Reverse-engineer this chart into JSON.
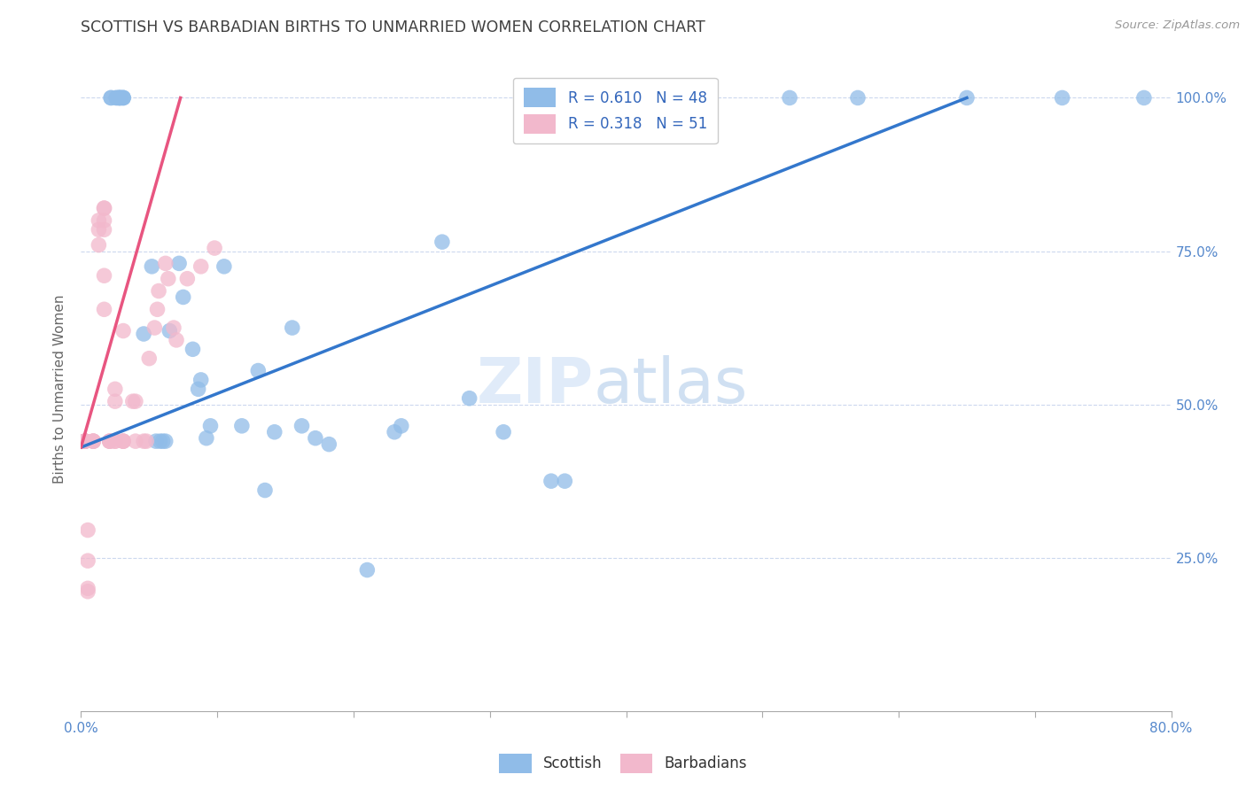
{
  "title": "SCOTTISH VS BARBADIAN BIRTHS TO UNMARRIED WOMEN CORRELATION CHART",
  "source": "Source: ZipAtlas.com",
  "ylabel": "Births to Unmarried Women",
  "ytick_labels": [
    "25.0%",
    "50.0%",
    "75.0%",
    "100.0%"
  ],
  "ytick_values": [
    0.25,
    0.5,
    0.75,
    1.0
  ],
  "xlim": [
    0.0,
    0.8
  ],
  "ylim": [
    0.0,
    1.05
  ],
  "watermark_zip": "ZIP",
  "watermark_atlas": "atlas",
  "scottish_x": [
    0.022,
    0.022,
    0.026,
    0.026,
    0.028,
    0.028,
    0.028,
    0.029,
    0.029,
    0.031,
    0.031,
    0.031,
    0.046,
    0.052,
    0.055,
    0.058,
    0.06,
    0.062,
    0.065,
    0.072,
    0.075,
    0.082,
    0.086,
    0.088,
    0.092,
    0.095,
    0.105,
    0.118,
    0.13,
    0.135,
    0.142,
    0.155,
    0.162,
    0.172,
    0.182,
    0.21,
    0.23,
    0.235,
    0.265,
    0.285,
    0.31,
    0.345,
    0.355,
    0.52,
    0.57,
    0.65,
    0.72,
    0.78
  ],
  "scottish_y": [
    1.0,
    1.0,
    1.0,
    1.0,
    1.0,
    1.0,
    1.0,
    1.0,
    1.0,
    1.0,
    1.0,
    1.0,
    0.615,
    0.725,
    0.44,
    0.44,
    0.44,
    0.44,
    0.62,
    0.73,
    0.675,
    0.59,
    0.525,
    0.54,
    0.445,
    0.465,
    0.725,
    0.465,
    0.555,
    0.36,
    0.455,
    0.625,
    0.465,
    0.445,
    0.435,
    0.23,
    0.455,
    0.465,
    0.765,
    0.51,
    0.455,
    0.375,
    0.375,
    1.0,
    1.0,
    1.0,
    1.0,
    1.0
  ],
  "barbadian_x": [
    0.003,
    0.003,
    0.003,
    0.003,
    0.003,
    0.003,
    0.003,
    0.005,
    0.005,
    0.005,
    0.005,
    0.009,
    0.009,
    0.009,
    0.009,
    0.013,
    0.013,
    0.013,
    0.017,
    0.017,
    0.017,
    0.017,
    0.017,
    0.017,
    0.021,
    0.021,
    0.021,
    0.025,
    0.025,
    0.025,
    0.025,
    0.031,
    0.031,
    0.031,
    0.031,
    0.038,
    0.04,
    0.04,
    0.046,
    0.048,
    0.05,
    0.054,
    0.056,
    0.057,
    0.062,
    0.064,
    0.068,
    0.07,
    0.078,
    0.088,
    0.098
  ],
  "barbadian_y": [
    0.44,
    0.44,
    0.44,
    0.44,
    0.44,
    0.44,
    0.44,
    0.295,
    0.245,
    0.2,
    0.195,
    0.44,
    0.44,
    0.44,
    0.44,
    0.8,
    0.785,
    0.76,
    0.82,
    0.82,
    0.8,
    0.785,
    0.71,
    0.655,
    0.44,
    0.44,
    0.44,
    0.44,
    0.44,
    0.525,
    0.505,
    0.44,
    0.44,
    0.44,
    0.62,
    0.505,
    0.505,
    0.44,
    0.44,
    0.44,
    0.575,
    0.625,
    0.655,
    0.685,
    0.73,
    0.705,
    0.625,
    0.605,
    0.705,
    0.725,
    0.755
  ],
  "scottish_line": {
    "x0": 0.0,
    "y0": 0.43,
    "x1": 0.65,
    "y1": 1.0
  },
  "barbadian_line": {
    "x0": 0.0,
    "y0": 0.43,
    "x1": 0.073,
    "y1": 1.0
  },
  "scottish_color": "#90bce8",
  "barbadian_color": "#f2b8cc",
  "scottish_line_color": "#3377cc",
  "barbadian_line_color": "#e85580",
  "barbadian_line_dashed": false,
  "background_color": "#ffffff",
  "grid_color": "#ccd8ee",
  "title_color": "#404040",
  "axis_label_color": "#5588cc",
  "legend_box_color": "#ffffff",
  "legend_border_color": "#cccccc"
}
